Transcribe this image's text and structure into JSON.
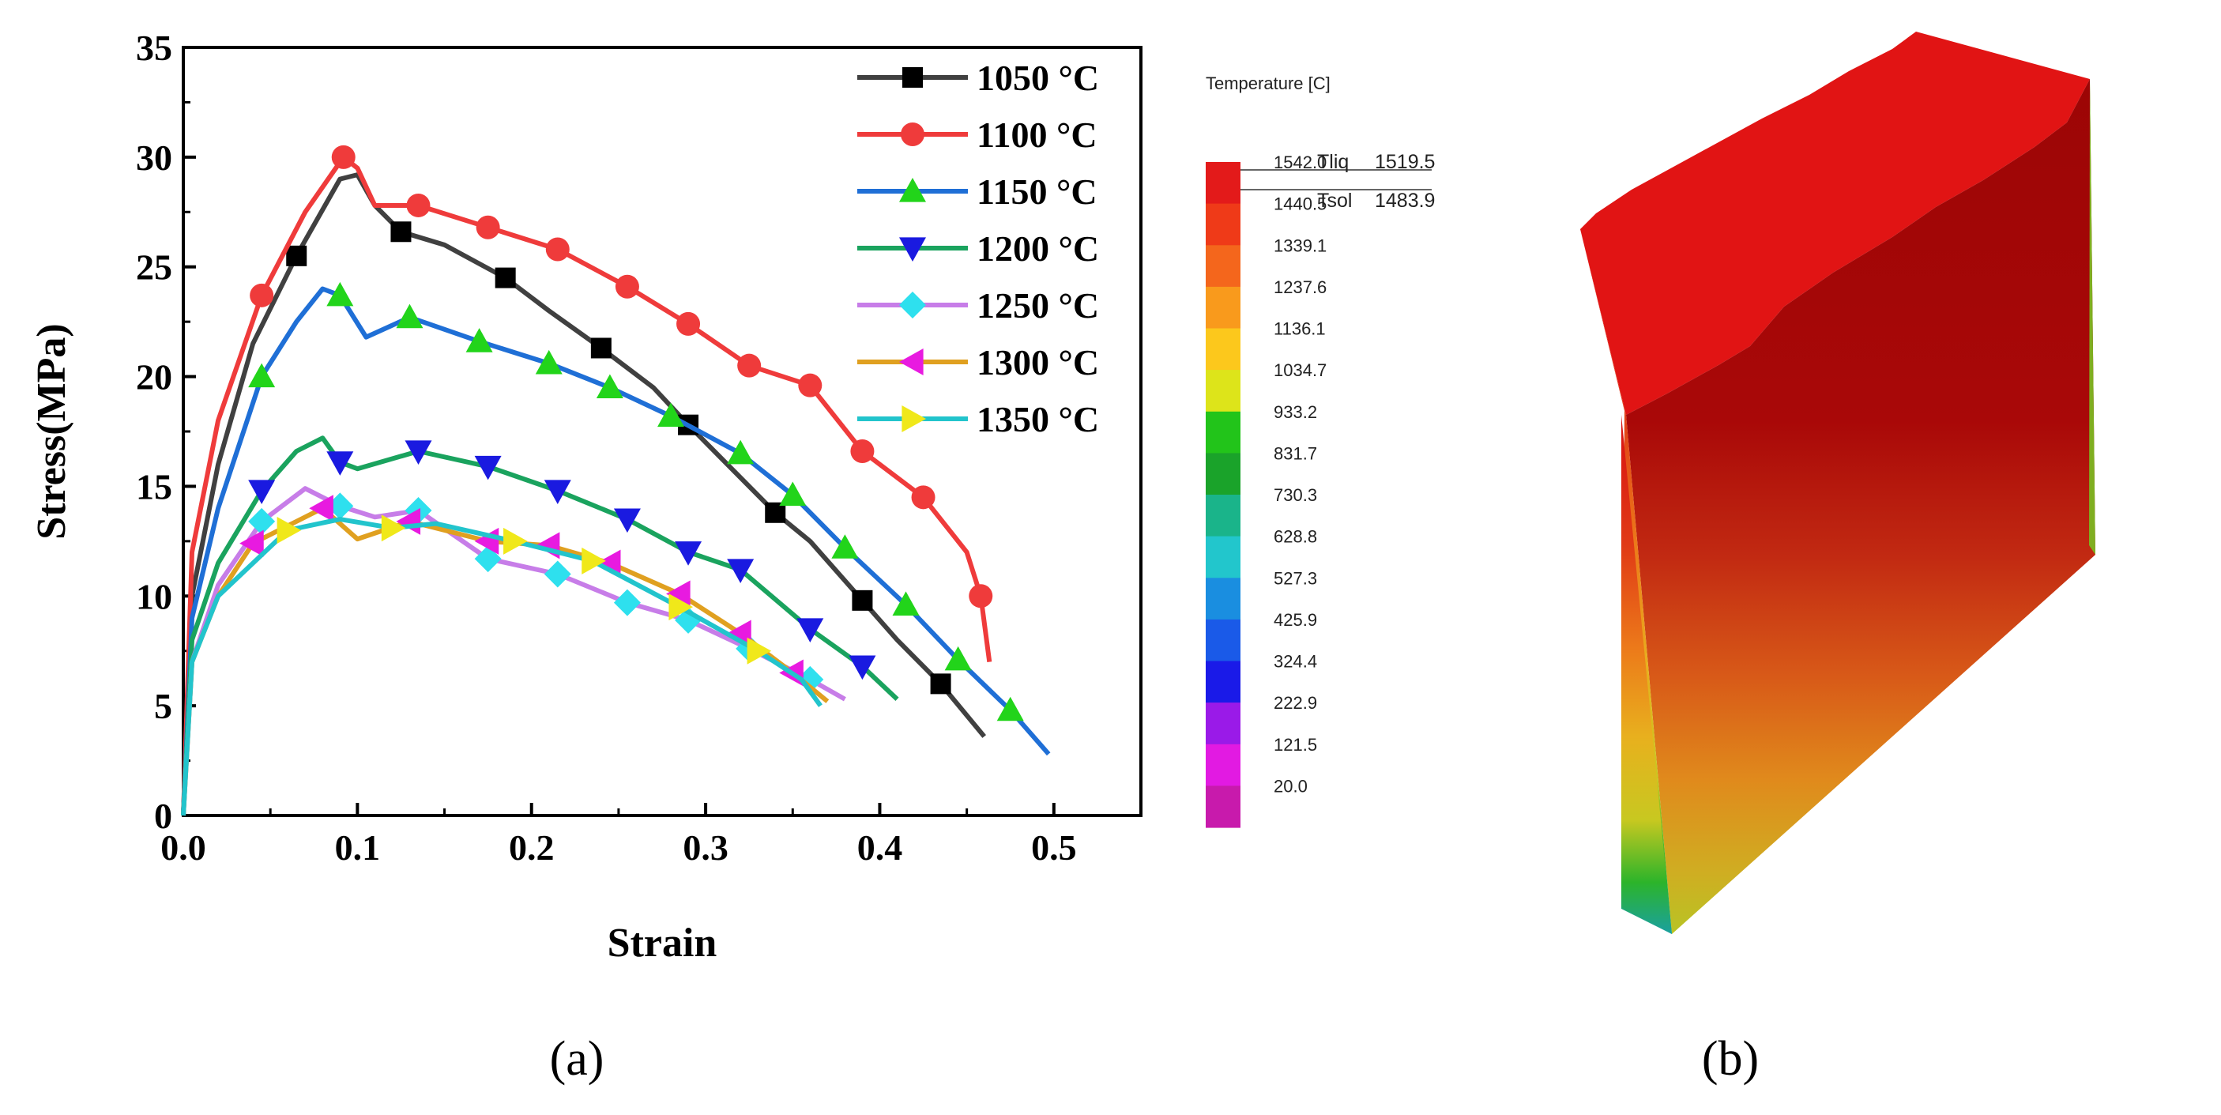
{
  "chart_data": {
    "type": "line",
    "xlabel": "Strain",
    "ylabel": "Stress(MPa)",
    "xlim": [
      0,
      0.55
    ],
    "ylim": [
      0,
      35
    ],
    "xticks": [
      "0.0",
      "0.1",
      "0.2",
      "0.3",
      "0.4",
      "0.5"
    ],
    "yticks": [
      "0",
      "5",
      "10",
      "15",
      "20",
      "25",
      "30",
      "35"
    ],
    "grid": false,
    "legend_position": "top-right",
    "series": [
      {
        "name": "1050 °C",
        "color": "#404040",
        "marker": "square",
        "x": [
          0,
          0.005,
          0.02,
          0.04,
          0.065,
          0.09,
          0.1,
          0.11,
          0.125,
          0.15,
          0.185,
          0.21,
          0.24,
          0.27,
          0.29,
          0.31,
          0.34,
          0.36,
          0.39,
          0.41,
          0.435,
          0.46
        ],
        "y": [
          0,
          10,
          16,
          21.5,
          25.5,
          29,
          29.2,
          27.8,
          26.6,
          26,
          24.5,
          23,
          21.3,
          19.5,
          17.8,
          16.2,
          13.8,
          12.5,
          9.8,
          8,
          6,
          3.6
        ],
        "marker_x": [
          0.065,
          0.125,
          0.185,
          0.24,
          0.29,
          0.34,
          0.39,
          0.435
        ],
        "marker_y": [
          25.5,
          26.6,
          24.5,
          21.3,
          17.8,
          13.8,
          9.8,
          6
        ]
      },
      {
        "name": "1100 °C",
        "color": "#ef3b3b",
        "marker": "circle",
        "x": [
          0,
          0.005,
          0.02,
          0.045,
          0.07,
          0.092,
          0.1,
          0.11,
          0.135,
          0.175,
          0.215,
          0.255,
          0.29,
          0.325,
          0.36,
          0.39,
          0.425,
          0.45,
          0.458,
          0.463
        ],
        "y": [
          0,
          12,
          18,
          23.7,
          27.5,
          30,
          29.5,
          27.8,
          27.8,
          26.8,
          25.8,
          24.1,
          22.4,
          20.5,
          19.6,
          16.6,
          14.5,
          12,
          10,
          7
        ],
        "marker_x": [
          0.045,
          0.092,
          0.135,
          0.175,
          0.215,
          0.255,
          0.29,
          0.325,
          0.36,
          0.39,
          0.425,
          0.458
        ],
        "marker_y": [
          23.7,
          30,
          27.8,
          26.8,
          25.8,
          24.1,
          22.4,
          20.5,
          19.6,
          16.6,
          14.5,
          10
        ]
      },
      {
        "name": "1150 °C",
        "color": "#1f6fd6",
        "marker": "triangle-up",
        "x": [
          0,
          0.005,
          0.02,
          0.045,
          0.065,
          0.08,
          0.09,
          0.105,
          0.13,
          0.17,
          0.21,
          0.245,
          0.28,
          0.32,
          0.35,
          0.38,
          0.415,
          0.445,
          0.475,
          0.497
        ],
        "y": [
          0,
          9,
          14,
          20,
          22.5,
          24,
          23.7,
          21.8,
          22.7,
          21.6,
          20.6,
          19.5,
          18.2,
          16.5,
          14.6,
          12.2,
          9.6,
          7.1,
          4.8,
          2.8
        ],
        "marker_x": [
          0.045,
          0.09,
          0.13,
          0.17,
          0.21,
          0.245,
          0.28,
          0.32,
          0.35,
          0.38,
          0.415,
          0.445,
          0.475
        ],
        "marker_y": [
          20,
          23.7,
          22.7,
          21.6,
          20.6,
          19.5,
          18.2,
          16.5,
          14.6,
          12.2,
          9.6,
          7.1,
          4.8
        ]
      },
      {
        "name": "1200 °C",
        "color": "#1aa35e",
        "marker": "triangle-down",
        "x": [
          0,
          0.005,
          0.02,
          0.045,
          0.065,
          0.08,
          0.09,
          0.1,
          0.135,
          0.175,
          0.215,
          0.255,
          0.29,
          0.32,
          0.36,
          0.39,
          0.41
        ],
        "y": [
          0,
          8,
          11.5,
          14.8,
          16.6,
          17.2,
          16.1,
          15.8,
          16.6,
          15.9,
          14.8,
          13.5,
          12,
          11.2,
          8.5,
          6.8,
          5.3
        ],
        "marker_x": [
          0.045,
          0.09,
          0.135,
          0.175,
          0.215,
          0.255,
          0.29,
          0.32,
          0.36,
          0.39
        ],
        "marker_y": [
          14.8,
          16.1,
          16.6,
          15.9,
          14.8,
          13.5,
          12,
          11.2,
          8.5,
          6.8
        ]
      },
      {
        "name": "1250 °C",
        "color": "#c77de8",
        "marker": "diamond",
        "x": [
          0,
          0.005,
          0.02,
          0.045,
          0.07,
          0.09,
          0.11,
          0.135,
          0.175,
          0.215,
          0.255,
          0.29,
          0.325,
          0.36,
          0.38
        ],
        "y": [
          0,
          7,
          10.5,
          13.4,
          14.9,
          14.1,
          13.6,
          13.9,
          11.7,
          11,
          9.7,
          8.9,
          7.6,
          6.2,
          5.3
        ],
        "marker_x": [
          0.045,
          0.09,
          0.135,
          0.175,
          0.215,
          0.255,
          0.29,
          0.325,
          0.36
        ],
        "marker_y": [
          13.4,
          14.1,
          13.9,
          11.7,
          11,
          9.7,
          8.9,
          7.6,
          6.2
        ]
      },
      {
        "name": "1300 °C",
        "color": "#e0a020",
        "marker": "triangle-left",
        "x": [
          0,
          0.005,
          0.02,
          0.04,
          0.08,
          0.1,
          0.13,
          0.175,
          0.21,
          0.245,
          0.285,
          0.32,
          0.35,
          0.37
        ],
        "y": [
          0,
          7,
          10,
          12.4,
          14,
          12.6,
          13.4,
          12.5,
          12.3,
          11.5,
          10.1,
          8.3,
          6.5,
          5.2
        ],
        "marker_x": [
          0.04,
          0.08,
          0.13,
          0.175,
          0.21,
          0.245,
          0.285,
          0.32,
          0.35
        ],
        "marker_y": [
          12.4,
          14,
          13.4,
          12.5,
          12.3,
          11.5,
          10.1,
          8.3,
          6.5
        ]
      },
      {
        "name": "1350 °C",
        "color": "#22c4cc",
        "marker": "triangle-right",
        "x": [
          0,
          0.005,
          0.02,
          0.06,
          0.09,
          0.12,
          0.145,
          0.19,
          0.235,
          0.285,
          0.33,
          0.355,
          0.366
        ],
        "y": [
          0,
          7,
          10,
          13,
          13.5,
          13.1,
          13.3,
          12.5,
          11.6,
          9.5,
          7.5,
          6.2,
          5
        ],
        "marker_x": [
          0.06,
          0.12,
          0.19,
          0.235,
          0.285,
          0.33
        ],
        "marker_y": [
          13,
          13.1,
          12.5,
          11.6,
          9.5,
          7.5
        ]
      }
    ]
  },
  "labels": {
    "panel_a": "(a)",
    "panel_b": "(b)"
  },
  "colorbar": {
    "title": "Temperature [C]",
    "levels": [
      "1542.0",
      "1440.5",
      "1339.1",
      "1237.6",
      "1136.1",
      "1034.7",
      "933.2",
      "831.7",
      "730.3",
      "628.8",
      "527.3",
      "425.9",
      "324.4",
      "222.9",
      "121.5",
      "20.0"
    ],
    "colors": [
      "#e31a1a",
      "#ef3a18",
      "#f4661c",
      "#f99a1c",
      "#fcc81c",
      "#dde41a",
      "#22c41a",
      "#1aa32a",
      "#1ab48a",
      "#22c6cc",
      "#1a8ee0",
      "#1a5ae8",
      "#1a1ae8",
      "#9a1ae8",
      "#e21ae2",
      "#c81aac"
    ],
    "tliq_label": "Tliq",
    "tliq_value": "1519.5",
    "tsol_label": "Tsol",
    "tsol_value": "1483.9"
  }
}
